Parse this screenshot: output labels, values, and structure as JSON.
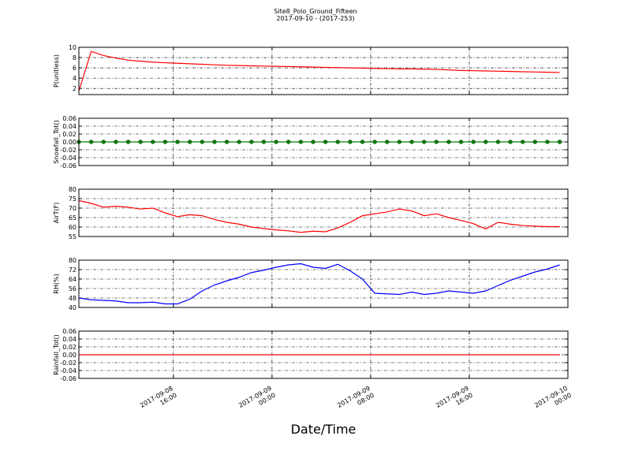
{
  "chart_data": {
    "type": "line",
    "title": "Site8_Polo_Ground_Fifteen",
    "subtitle": "2017-09-10 - (2017-253)",
    "x_label": "Date/Time",
    "grid": true,
    "x": [
      "2017-09-08 08:20",
      "2017-09-08 09:20",
      "2017-09-08 10:20",
      "2017-09-08 11:20",
      "2017-09-08 12:20",
      "2017-09-08 13:20",
      "2017-09-08 14:20",
      "2017-09-08 15:20",
      "2017-09-08 16:20",
      "2017-09-08 17:20",
      "2017-09-08 18:20",
      "2017-09-08 19:20",
      "2017-09-08 20:20",
      "2017-09-08 21:20",
      "2017-09-08 22:20",
      "2017-09-08 23:20",
      "2017-09-09 00:20",
      "2017-09-09 01:20",
      "2017-09-09 02:20",
      "2017-09-09 03:20",
      "2017-09-09 04:20",
      "2017-09-09 05:20",
      "2017-09-09 06:20",
      "2017-09-09 07:20",
      "2017-09-09 08:20",
      "2017-09-09 09:20",
      "2017-09-09 10:20",
      "2017-09-09 11:20",
      "2017-09-09 12:20",
      "2017-09-09 13:20",
      "2017-09-09 14:20",
      "2017-09-09 15:20",
      "2017-09-09 16:20",
      "2017-09-09 17:20",
      "2017-09-09 18:20",
      "2017-09-09 19:20",
      "2017-09-09 20:20",
      "2017-09-09 21:20",
      "2017-09-09 22:20",
      "2017-09-09 23:20"
    ],
    "xlim": [
      "2017-09-08 08:20",
      "2017-09-10 00:00"
    ],
    "xticks": [
      {
        "value": "2017-09-08 16:00",
        "label": "2017-09-08\n16:00"
      },
      {
        "value": "2017-09-09 00:00",
        "label": "2017-09-09\n00:00"
      },
      {
        "value": "2017-09-09 08:00",
        "label": "2017-09-09\n08:00"
      },
      {
        "value": "2017-09-09 16:00",
        "label": "2017-09-09\n16:00"
      },
      {
        "value": "2017-09-10 00:00",
        "label": "2017-09-10\n00:00"
      }
    ],
    "subplots": [
      {
        "y_label": "P(unitless)",
        "ylim": [
          0.8,
          10
        ],
        "yticks": [
          2,
          4,
          6,
          8,
          10
        ],
        "series": [
          {
            "color": "#ff0000",
            "values": [
              1.5,
              9.2,
              8.4,
              7.9,
              7.5,
              7.3,
              7.1,
              7.0,
              6.9,
              6.8,
              6.7,
              6.6,
              6.5,
              6.45,
              6.4,
              6.35,
              6.3,
              6.25,
              6.2,
              6.15,
              6.1,
              6.05,
              6.0,
              5.95,
              5.9,
              5.85,
              5.8,
              5.8,
              5.75,
              5.7,
              5.6,
              5.5,
              5.45,
              5.4,
              5.35,
              5.3,
              5.25,
              5.2,
              5.15,
              5.1
            ]
          }
        ]
      },
      {
        "y_label": "Snowfall_Tot()",
        "ylim": [
          -0.06,
          0.06
        ],
        "yticks": [
          {
            "value": -0.06,
            "label": "-0.06"
          },
          {
            "value": -0.04,
            "label": "-0.04"
          },
          {
            "value": -0.02,
            "label": "-0.02"
          },
          {
            "value": 0,
            "label": "0.00"
          },
          {
            "value": 0.02,
            "label": "0.02"
          },
          {
            "value": 0.04,
            "label": "0.04"
          },
          {
            "value": 0.06,
            "label": "0.06"
          }
        ],
        "series": [
          {
            "color": "#008000",
            "marker": "o",
            "values": [
              0,
              0,
              0,
              0,
              0,
              0,
              0,
              0,
              0,
              0,
              0,
              0,
              0,
              0,
              0,
              0,
              0,
              0,
              0,
              0,
              0,
              0,
              0,
              0,
              0,
              0,
              0,
              0,
              0,
              0,
              0,
              0,
              0,
              0,
              0,
              0,
              0,
              0,
              0,
              0
            ]
          }
        ]
      },
      {
        "y_label": "AirT(F)",
        "ylim": [
          55,
          80
        ],
        "yticks": [
          55,
          60,
          65,
          70,
          75,
          80
        ],
        "series": [
          {
            "color": "#ff0000",
            "values": [
              74,
              72.5,
              70.5,
              71,
              70.5,
              69.5,
              70,
              67.5,
              65.5,
              66.5,
              66,
              64,
              62.5,
              61.5,
              60,
              59.2,
              58.5,
              58,
              57.2,
              57.8,
              57.5,
              59.5,
              62.5,
              66,
              67,
              68,
              69.5,
              68.5,
              66,
              67,
              65,
              63.5,
              61.8,
              59,
              62.5,
              61.5,
              60.8,
              60.5,
              60.2,
              60.2
            ]
          }
        ]
      },
      {
        "y_label": "RH(%)",
        "ylim": [
          40,
          80
        ],
        "yticks": [
          40,
          48,
          56,
          64,
          72,
          80
        ],
        "series": [
          {
            "color": "#0000ff",
            "values": [
              48,
              46.5,
              46,
              45.5,
              44,
              44,
              44.5,
              43,
              43,
              47,
              54,
              59,
              62.5,
              65.5,
              69.5,
              71.5,
              74,
              76,
              77,
              74,
              73,
              76.5,
              71,
              64,
              52,
              51.5,
              51,
              53,
              51,
              52,
              54,
              53,
              52,
              54,
              58.5,
              63,
              66.5,
              70,
              72.5,
              76
            ]
          }
        ]
      },
      {
        "y_label": "Rainfall_Tot()",
        "ylim": [
          -0.06,
          0.06
        ],
        "yticks": [
          {
            "value": -0.06,
            "label": "-0.06"
          },
          {
            "value": -0.04,
            "label": "-0.04"
          },
          {
            "value": -0.02,
            "label": "-0.02"
          },
          {
            "value": 0,
            "label": "0.00"
          },
          {
            "value": 0.02,
            "label": "0.02"
          },
          {
            "value": 0.04,
            "label": "0.04"
          },
          {
            "value": 0.06,
            "label": "0.06"
          }
        ],
        "series": [
          {
            "color": "#ff0000",
            "values": [
              0,
              0,
              0,
              0,
              0,
              0,
              0,
              0,
              0,
              0,
              0,
              0,
              0,
              0,
              0,
              0,
              0,
              0,
              0,
              0,
              0,
              0,
              0,
              0,
              0,
              0,
              0,
              0,
              0,
              0,
              0,
              0,
              0,
              0,
              0,
              0,
              0,
              0,
              0,
              0
            ]
          }
        ]
      }
    ]
  }
}
